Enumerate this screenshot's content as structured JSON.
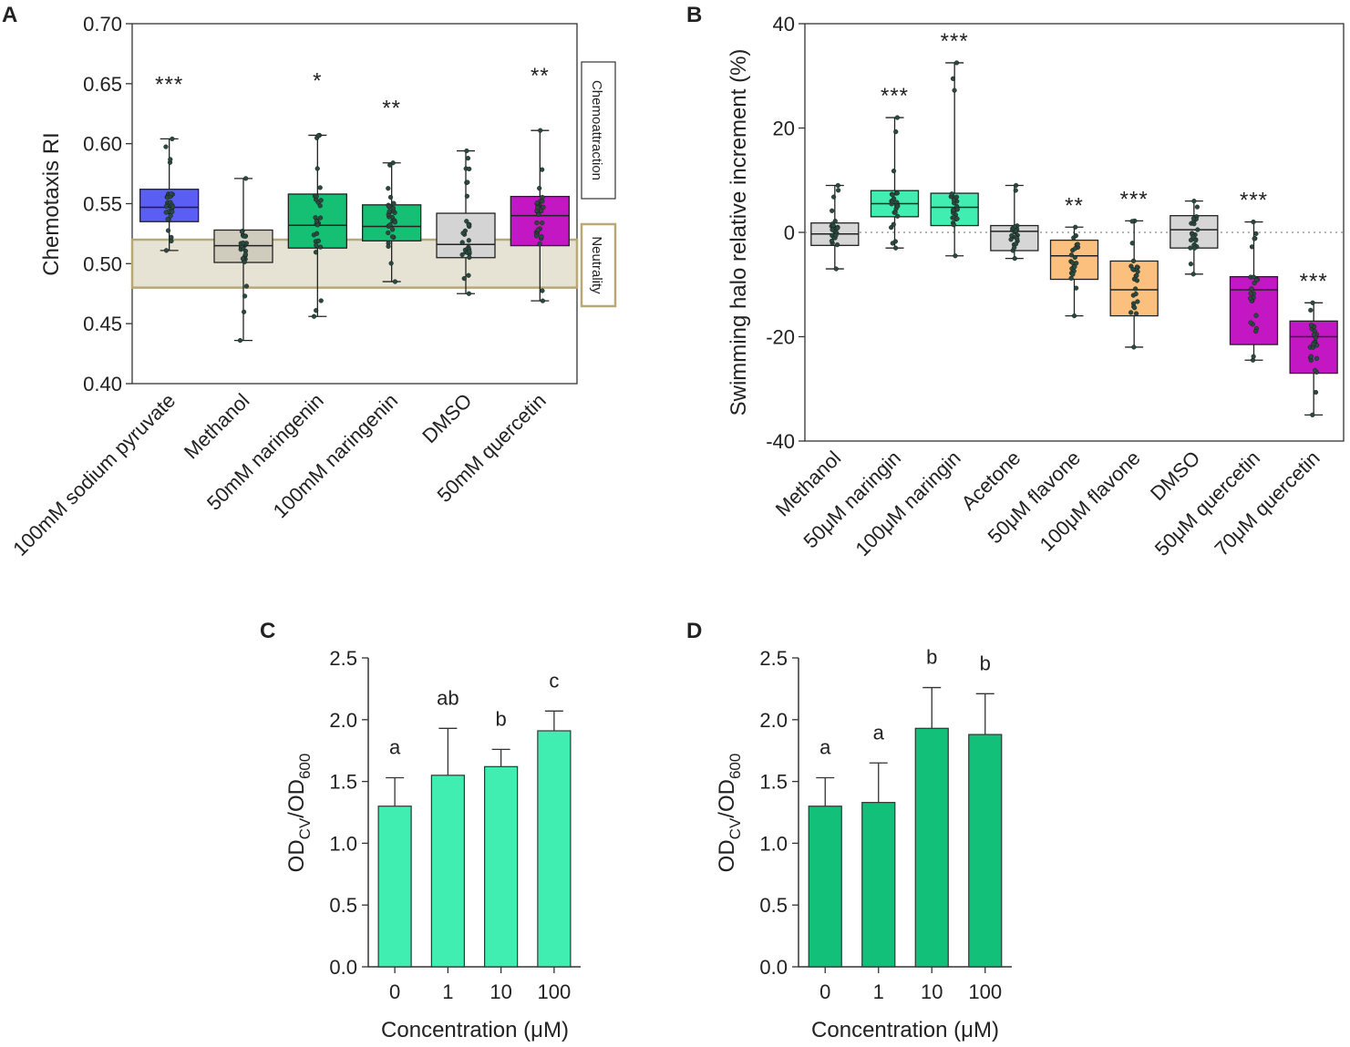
{
  "panels": {
    "A": {
      "letter": "A",
      "chart_data": {
        "type": "box",
        "ylabel": "Chemotaxis RI",
        "xlabel": "",
        "ylim": [
          0.4,
          0.7
        ],
        "yticks": [
          "0.40",
          "0.45",
          "0.50",
          "0.55",
          "0.60",
          "0.65",
          "0.70"
        ],
        "grid": false,
        "categories": [
          "100mM sodium pyruvate",
          "Methanol",
          "50mM naringenin",
          "100mM naringenin",
          "DMSO",
          "50mM quercetin"
        ],
        "boxes": [
          {
            "min": 0.511,
            "q1": 0.535,
            "median": 0.547,
            "q3": 0.562,
            "max": 0.604,
            "color": "#5a5ef5",
            "sig": "***"
          },
          {
            "min": 0.436,
            "q1": 0.501,
            "median": 0.515,
            "q3": 0.528,
            "max": 0.571,
            "color": "#cfcbbd",
            "sig": ""
          },
          {
            "min": 0.456,
            "q1": 0.513,
            "median": 0.532,
            "q3": 0.558,
            "max": 0.607,
            "color": "#15bf73",
            "sig": "*"
          },
          {
            "min": 0.485,
            "q1": 0.519,
            "median": 0.531,
            "q3": 0.549,
            "max": 0.584,
            "color": "#15bf73",
            "sig": "**"
          },
          {
            "min": 0.475,
            "q1": 0.505,
            "median": 0.516,
            "q3": 0.542,
            "max": 0.594,
            "color": "#d4d4d4",
            "sig": ""
          },
          {
            "min": 0.469,
            "q1": 0.515,
            "median": 0.54,
            "q3": 0.556,
            "max": 0.611,
            "color": "#c417c4",
            "sig": "**"
          }
        ],
        "neutral_band": [
          0.48,
          0.52
        ],
        "annotations": {
          "upper": "Chemoattraction",
          "middle": "Neutrality"
        }
      }
    },
    "B": {
      "letter": "B",
      "chart_data": {
        "type": "box",
        "ylabel": "Swimming halo relative increment (%)",
        "xlabel": "",
        "ylim": [
          -40,
          40
        ],
        "yticks": [
          "-40",
          "-20",
          "0",
          "20",
          "40"
        ],
        "grid": false,
        "reference_line": 0,
        "categories": [
          "Methanol",
          "50μM naringin",
          "100μM naringin",
          "Acetone",
          "50μM flavone",
          "100μM flavone",
          "DMSO",
          "50μM quercetin",
          "70μM quercetin"
        ],
        "boxes": [
          {
            "min": -7,
            "q1": -2.5,
            "median": -0.3,
            "q3": 1.8,
            "max": 9,
            "color": "#d6d6d6",
            "sig": ""
          },
          {
            "min": -3,
            "q1": 3,
            "median": 5.5,
            "q3": 8,
            "max": 22,
            "color": "#40eeb2",
            "sig": "***"
          },
          {
            "min": -4.5,
            "q1": 1.3,
            "median": 4.8,
            "q3": 7.5,
            "max": 32.5,
            "color": "#40eeb2",
            "sig": "***"
          },
          {
            "min": -5,
            "q1": -3.5,
            "median": 0.2,
            "q3": 1.3,
            "max": 9,
            "color": "#d6d6d6",
            "sig": ""
          },
          {
            "min": -16,
            "q1": -9,
            "median": -4.5,
            "q3": -1.5,
            "max": 1,
            "color": "#fbbf7e",
            "sig": "**"
          },
          {
            "min": -22,
            "q1": -16,
            "median": -11,
            "q3": -5.5,
            "max": 2.2,
            "color": "#fbbf7e",
            "sig": "***"
          },
          {
            "min": -8,
            "q1": -3,
            "median": 0.5,
            "q3": 3.2,
            "max": 6,
            "color": "#d6d6d6",
            "sig": ""
          },
          {
            "min": -24.5,
            "q1": -21.5,
            "median": -11,
            "q3": -8.5,
            "max": 2,
            "color": "#c417c4",
            "sig": "***"
          },
          {
            "min": -35,
            "q1": -27,
            "median": -20,
            "q3": -17,
            "max": -13.5,
            "color": "#c417c4",
            "sig": "***"
          }
        ]
      }
    },
    "C": {
      "letter": "C",
      "chart_data": {
        "type": "bar",
        "ylabel_main": "OD",
        "ylabel_sub1": "CV",
        "ylabel_mid": "/OD",
        "ylabel_sub2": "600",
        "xlabel": "Concentration (μM)",
        "ylim": [
          0,
          2.5
        ],
        "yticks": [
          "0.0",
          "0.5",
          "1.0",
          "1.5",
          "2.0",
          "2.5"
        ],
        "categories": [
          "0",
          "1",
          "10",
          "100"
        ],
        "values": [
          1.3,
          1.55,
          1.62,
          1.91
        ],
        "errors": [
          0.23,
          0.38,
          0.14,
          0.16
        ],
        "letters": [
          "a",
          "ab",
          "b",
          "c"
        ],
        "color": "#40eeb2"
      }
    },
    "D": {
      "letter": "D",
      "chart_data": {
        "type": "bar",
        "ylabel_main": "OD",
        "ylabel_sub1": "CV",
        "ylabel_mid": "/OD",
        "ylabel_sub2": "600",
        "xlabel": "Concentration (μM)",
        "ylim": [
          0,
          2.5
        ],
        "yticks": [
          "0.0",
          "0.5",
          "1.0",
          "1.5",
          "2.0",
          "2.5"
        ],
        "categories": [
          "0",
          "1",
          "10",
          "100"
        ],
        "values": [
          1.3,
          1.33,
          1.93,
          1.88
        ],
        "errors": [
          0.23,
          0.32,
          0.33,
          0.33
        ],
        "letters": [
          "a",
          "a",
          "b",
          "b"
        ],
        "color": "#12c07a"
      }
    }
  }
}
